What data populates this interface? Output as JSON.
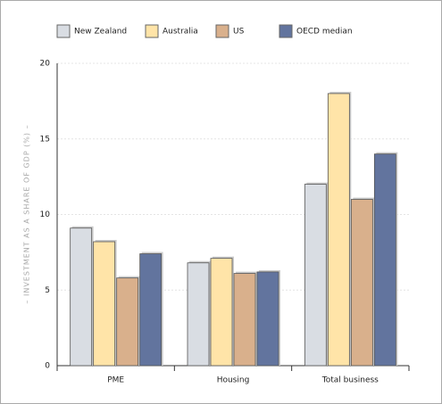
{
  "chart_data": {
    "type": "bar",
    "y_label": "– INVESTMENT AS A SHARE OF GDP (%) –",
    "categories": [
      "PME",
      "Housing",
      "Total business"
    ],
    "series": [
      {
        "name": "New Zealand",
        "color": "#d9dde3",
        "values": [
          9.1,
          6.8,
          12
        ]
      },
      {
        "name": "Australia",
        "color": "#ffe4a8",
        "values": [
          8.2,
          7.1,
          18
        ]
      },
      {
        "name": "US",
        "color": "#d9b08c",
        "values": [
          5.8,
          6.1,
          11
        ]
      },
      {
        "name": "OECD median",
        "color": "#62749e",
        "values": [
          7.4,
          6.2,
          14
        ]
      }
    ],
    "ylim": [
      0,
      20
    ],
    "yticks": [
      0,
      5,
      10,
      15,
      20
    ],
    "grid": true
  }
}
